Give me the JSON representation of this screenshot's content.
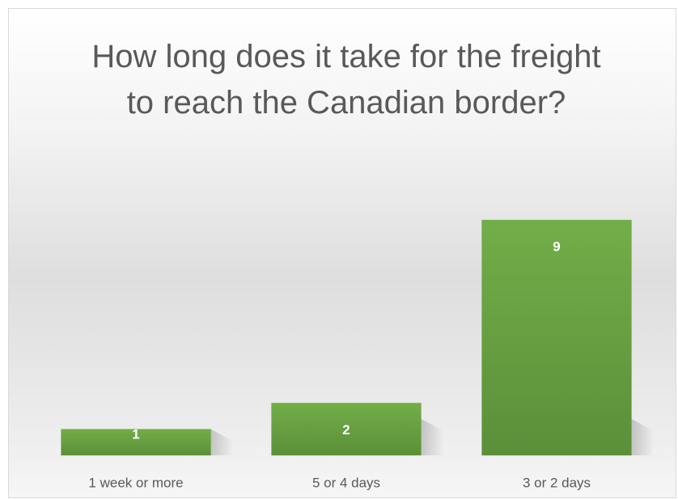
{
  "chart_data": {
    "type": "bar",
    "title": "How long does it take for the freight to reach the Canadian border?",
    "categories": [
      "1 week or more",
      "5 or 4 days",
      "3 or 2 days"
    ],
    "values": [
      1,
      2,
      9
    ],
    "color": "#70ad47"
  }
}
